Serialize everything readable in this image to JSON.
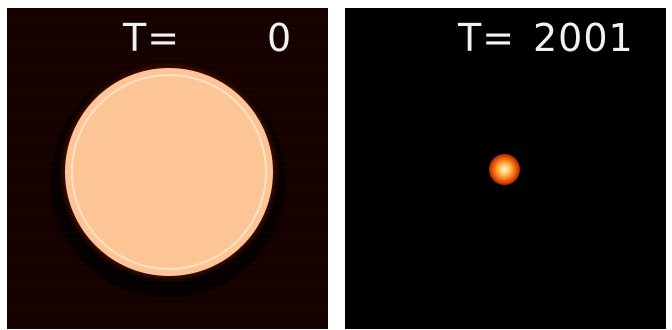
{
  "panels": [
    {
      "time_label": "T=",
      "time_value": "0",
      "background_color": "#160101",
      "content": "large-disk"
    },
    {
      "time_label": "T=",
      "time_value": "2001",
      "background_color": "#000000",
      "content": "small-dot"
    }
  ],
  "colors": {
    "disk_fill": "#fdc596",
    "rim_glow": "#f07a20",
    "dot_core": "#fff3d6",
    "label_text": "#f2f2f2"
  }
}
